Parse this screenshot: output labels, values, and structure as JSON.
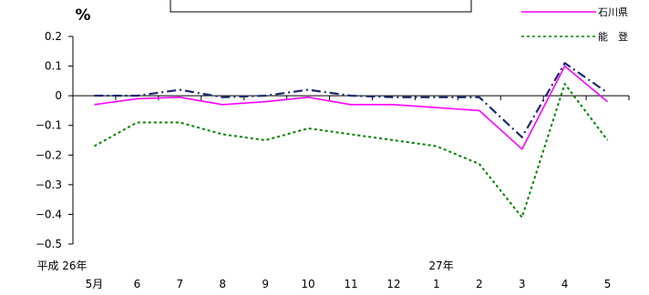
{
  "chart_data": {
    "type": "line",
    "unit_label": "%",
    "x": [
      "5月",
      "6",
      "7",
      "8",
      "9",
      "10",
      "11",
      "12",
      "1",
      "2",
      "3",
      "4",
      "5"
    ],
    "year_labels": {
      "first": "平成 26年",
      "second": "27年"
    },
    "ylim": [
      -0.5,
      0.2
    ],
    "yticks": [
      "0.2",
      "0.1",
      "0",
      "−0.1",
      "−0.2",
      "−0.3",
      "−0.4",
      "−0.5"
    ],
    "ytick_values": [
      0.2,
      0.1,
      0,
      -0.1,
      -0.2,
      -0.3,
      -0.4,
      -0.5
    ],
    "series": [
      {
        "name": "石川県",
        "color": "#ff00ff",
        "style": "solid",
        "values": [
          -0.03,
          -0.01,
          -0.005,
          -0.03,
          -0.02,
          -0.005,
          -0.03,
          -0.03,
          -0.04,
          -0.05,
          -0.18,
          0.1,
          -0.02
        ]
      },
      {
        "name": "能　登",
        "color": "#008000",
        "style": "dotted",
        "values": [
          -0.17,
          -0.09,
          -0.09,
          -0.13,
          -0.15,
          -0.11,
          -0.13,
          -0.15,
          -0.17,
          -0.23,
          -0.41,
          0.04,
          -0.15
        ]
      },
      {
        "name": "",
        "color": "#1a2a6c",
        "style": "dashdot",
        "values": [
          0,
          0,
          0.02,
          -0.005,
          0,
          0.02,
          0,
          -0.005,
          -0.005,
          -0.005,
          -0.14,
          0.11,
          0.01
        ]
      }
    ]
  }
}
